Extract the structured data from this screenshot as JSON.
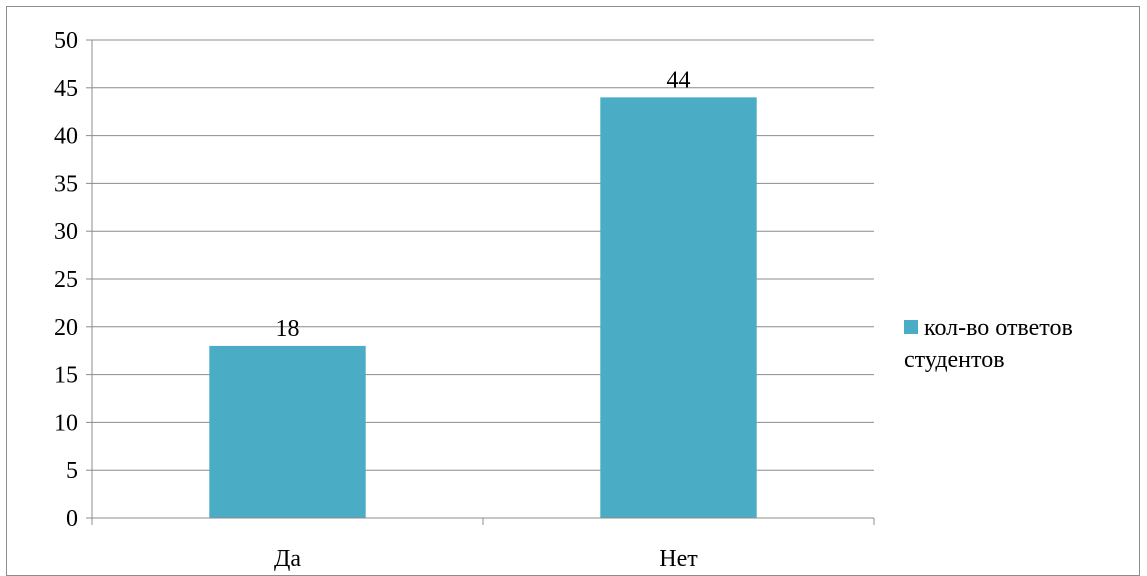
{
  "chart_data": {
    "type": "bar",
    "categories": [
      "Да",
      "Нет"
    ],
    "series": [
      {
        "name": "кол-во ответов студентов",
        "values": [
          18,
          44
        ]
      }
    ],
    "ylim": [
      0,
      50
    ],
    "ytick_step": 5,
    "data_labels": [
      "18",
      "44"
    ],
    "title": "",
    "xlabel": "",
    "ylabel": "",
    "grid": true,
    "legend_position": "right",
    "bar_color": "#4bacc6"
  }
}
